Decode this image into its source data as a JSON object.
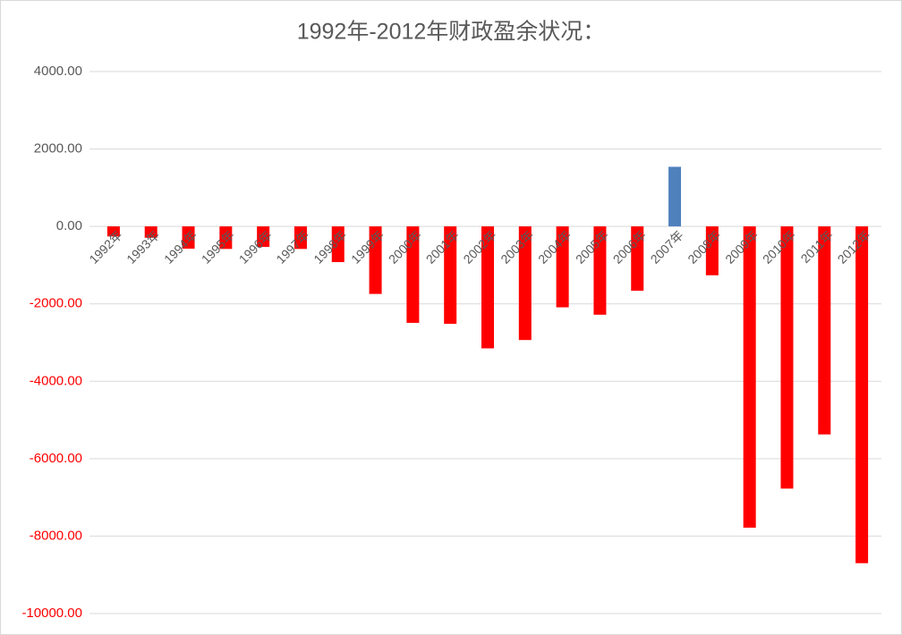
{
  "chart_data": {
    "type": "bar",
    "title": "1992年-2012年财政盈余状况：",
    "categories": [
      "1992年",
      "1993年",
      "1994年",
      "1995年",
      "1996年",
      "1997年",
      "1998年",
      "1999年",
      "2000年",
      "2001年",
      "2002年",
      "2003年",
      "2004年",
      "2005年",
      "2006年",
      "2007年",
      "2008年",
      "2009年",
      "2010年",
      "2011年",
      "2012年"
    ],
    "values": [
      -259,
      -293,
      -575,
      -582,
      -530,
      -582,
      -922,
      -1744,
      -2491,
      -2517,
      -3150,
      -2935,
      -2090,
      -2281,
      -1663,
      1540,
      -1262,
      -7782,
      -6773,
      -5373,
      -8699
    ],
    "color": "#4f81bd",
    "negative_color": "#ff0000",
    "negative_tick_color": "#ff0000",
    "ylim": [
      -10000,
      4000
    ],
    "yticks": [
      {
        "value": -10000,
        "label": "-10000.00"
      },
      {
        "value": -8000,
        "label": "-8000.00"
      },
      {
        "value": -6000,
        "label": "-6000.00"
      },
      {
        "value": -4000,
        "label": "-4000.00"
      },
      {
        "value": -2000,
        "label": "-2000.00"
      },
      {
        "value": 0,
        "label": "0.00"
      },
      {
        "value": 2000,
        "label": "2000.00"
      },
      {
        "value": 4000,
        "label": "4000.00"
      }
    ],
    "grid": true
  }
}
